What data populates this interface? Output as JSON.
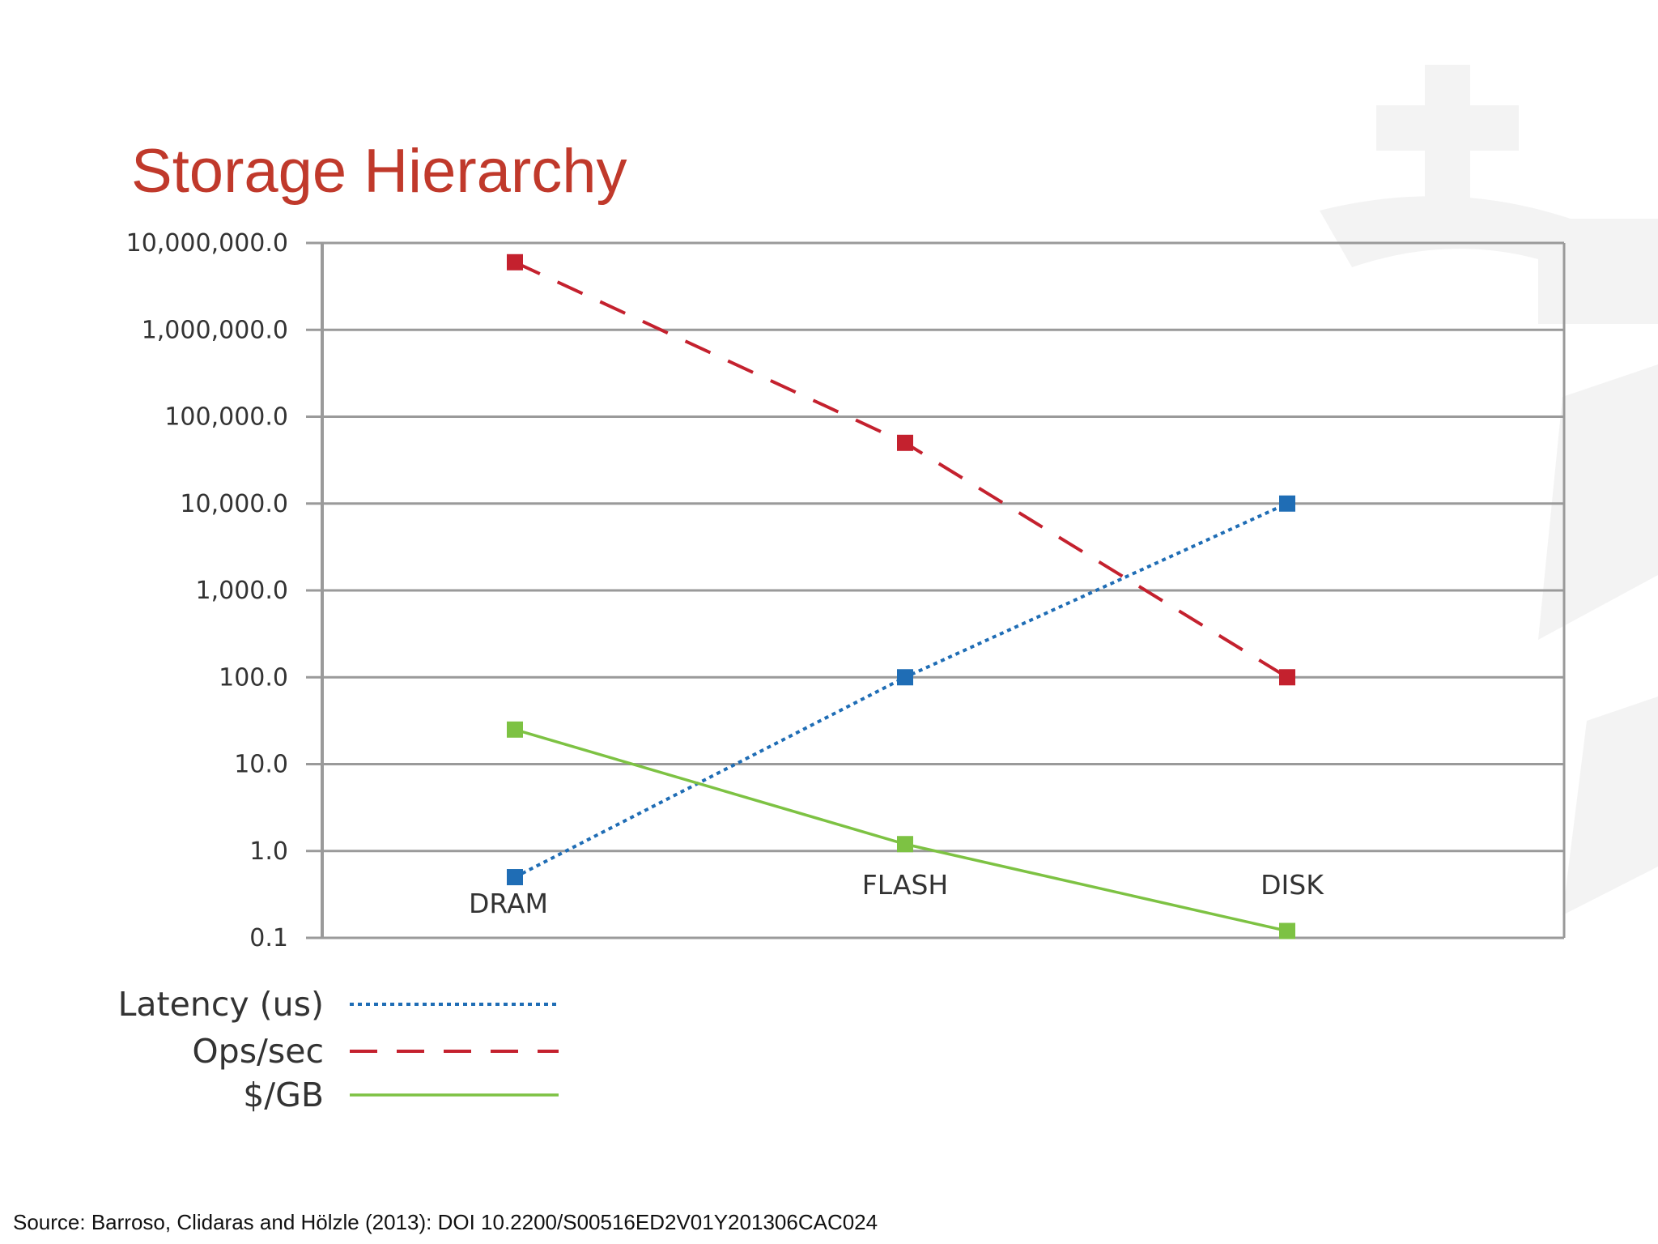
{
  "slide": {
    "title": "Storage Hierarchy",
    "source": "Source: Barroso, Clidaras and Hölzle (2013): DOI 10.2200/S00516ED2V01Y201306CAC024"
  },
  "chart_data": {
    "type": "line",
    "title": "Storage Hierarchy",
    "xlabel": "",
    "ylabel": "",
    "yscale": "log",
    "ylim": [
      0.1,
      10000000
    ],
    "grid": true,
    "legend_position": "bottom-left",
    "categories": [
      "DRAM",
      "FLASH",
      "DISK"
    ],
    "y_ticks": [
      10000000,
      1000000,
      100000,
      10000,
      1000,
      100,
      10,
      1,
      0.1
    ],
    "y_tick_labels": [
      "10,000,000.0",
      "1,000,000.0",
      "100,000.0",
      "10,000.0",
      "1,000.0",
      "100.0",
      "10.0",
      "1.0",
      "0.1"
    ],
    "series": [
      {
        "name": "Latency (us)",
        "color": "#1f6db5",
        "dash": "dotted",
        "values": [
          0.5,
          100,
          10000
        ]
      },
      {
        "name": "Ops/sec",
        "color": "#c4212e",
        "dash": "dashed",
        "values": [
          6000000,
          50000,
          100
        ]
      },
      {
        "name": "$/GB",
        "color": "#7dc243",
        "dash": "solid",
        "values": [
          25,
          1.2,
          0.12
        ]
      }
    ]
  }
}
